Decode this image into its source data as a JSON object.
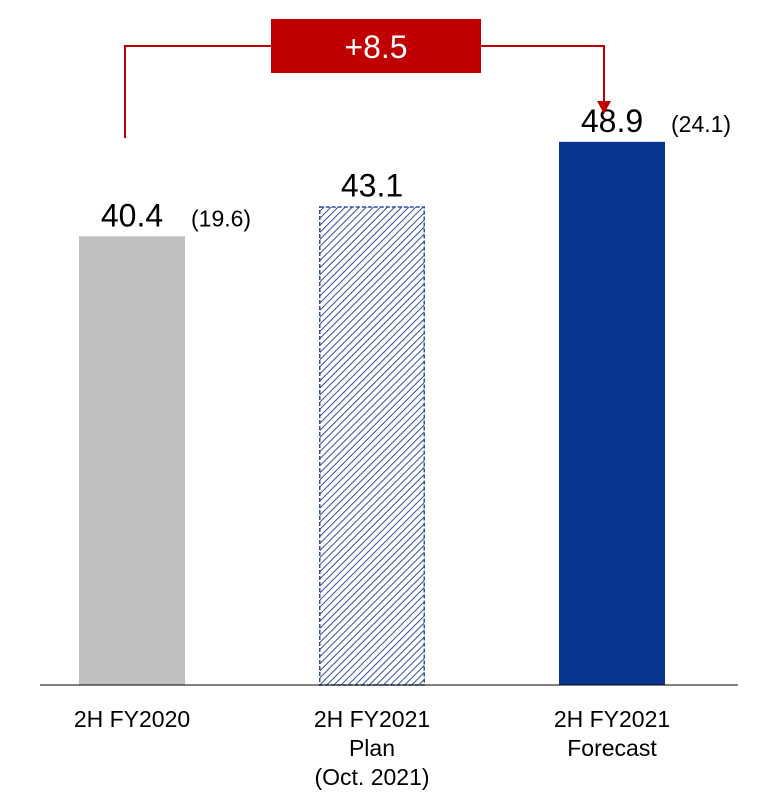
{
  "chart_data": {
    "type": "bar",
    "categories": [
      [
        "2H FY2020"
      ],
      [
        "2H FY2021",
        "Plan",
        "(Oct. 2021)"
      ],
      [
        "2H FY2021",
        "Forecast"
      ]
    ],
    "values": [
      40.4,
      43.1,
      48.9
    ],
    "value_labels": [
      "40.4",
      "43.1",
      "48.9"
    ],
    "secondary_labels": [
      "(19.6)",
      "",
      "(24.1)"
    ],
    "bar_styles": [
      "solid",
      "hatched",
      "solid"
    ],
    "bar_colors": [
      "#bfbfbf",
      "#2f4f9f",
      "#083591"
    ],
    "delta": {
      "label": "+8.5",
      "from_index": 0,
      "to_index": 2,
      "color": "#c00000"
    },
    "title": "",
    "xlabel": "",
    "ylabel": "",
    "ylim": [
      0,
      56
    ],
    "grid": false
  }
}
